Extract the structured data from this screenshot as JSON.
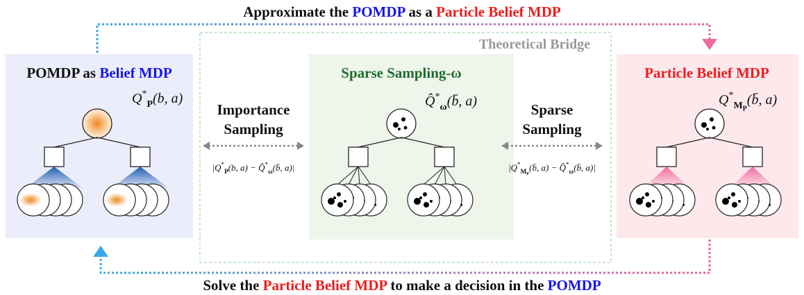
{
  "top_caption": [
    {
      "text": "Approximate the ",
      "color": "#111111"
    },
    {
      "text": "POMDP",
      "color": "#1515ee"
    },
    {
      "text": " as a ",
      "color": "#111111"
    },
    {
      "text": "Particle Belief MDP",
      "color": "#ee1c1c"
    }
  ],
  "bridge_label": "Theoretical Bridge",
  "left_panel": {
    "title": [
      {
        "text": "POMDP as ",
        "color": "#111111"
      },
      {
        "text": "Belief MDP",
        "color": "#1515ee"
      }
    ],
    "value_function": [
      {
        "text": "Q",
        "pos": "base"
      },
      {
        "text": "*",
        "pos": "sup"
      },
      {
        "text": "P",
        "pos": "sub"
      },
      {
        "text": "(b, a)",
        "pos": "base"
      }
    ]
  },
  "middle_panel": {
    "title": [
      {
        "text": "Sparse Sampling-ω",
        "color": "#1e6b2e"
      }
    ],
    "value_function": [
      {
        "text": "Q̂",
        "pos": "base"
      },
      {
        "text": "*",
        "pos": "sup"
      },
      {
        "text": "ω",
        "pos": "sub"
      },
      {
        "text": "(b̄, a)",
        "pos": "base"
      }
    ]
  },
  "right_panel": {
    "title": [
      {
        "text": "Particle Belief MDP",
        "color": "#ee1c1c"
      }
    ],
    "value_function": [
      {
        "text": "Q",
        "pos": "base"
      },
      {
        "text": "*",
        "pos": "sup"
      },
      {
        "text": "M",
        "pos": "sub"
      },
      {
        "text": "P",
        "pos": "sub2"
      },
      {
        "text": "(b̄, a)",
        "pos": "base"
      }
    ]
  },
  "left_link": {
    "label": [
      "Importance",
      "Sampling"
    ],
    "error": [
      {
        "text": "|Q",
        "pos": "base"
      },
      {
        "text": "*",
        "pos": "sup"
      },
      {
        "text": "P",
        "pos": "sub"
      },
      {
        "text": "(b, a) − Q̂",
        "pos": "base"
      },
      {
        "text": "*",
        "pos": "sup"
      },
      {
        "text": "ω",
        "pos": "sub"
      },
      {
        "text": "(b̄, a)|",
        "pos": "base"
      }
    ]
  },
  "right_link": {
    "label": [
      "Sparse",
      "Sampling"
    ],
    "error": [
      {
        "text": "|Q",
        "pos": "base"
      },
      {
        "text": "*",
        "pos": "sup"
      },
      {
        "text": "M",
        "pos": "sub"
      },
      {
        "text": "P",
        "pos": "sub2"
      },
      {
        "text": "(b̄, a) − Q̂",
        "pos": "base"
      },
      {
        "text": "*",
        "pos": "sup"
      },
      {
        "text": "ω",
        "pos": "sub"
      },
      {
        "text": "(b̄, a)|",
        "pos": "base"
      }
    ]
  },
  "bottom_caption": [
    {
      "text": "Solve the ",
      "color": "#111111"
    },
    {
      "text": "Particle Belief MDP",
      "color": "#ee1c1c"
    },
    {
      "text": " to make a decision in the ",
      "color": "#111111"
    },
    {
      "text": "POMDP",
      "color": "#1515ee"
    }
  ]
}
